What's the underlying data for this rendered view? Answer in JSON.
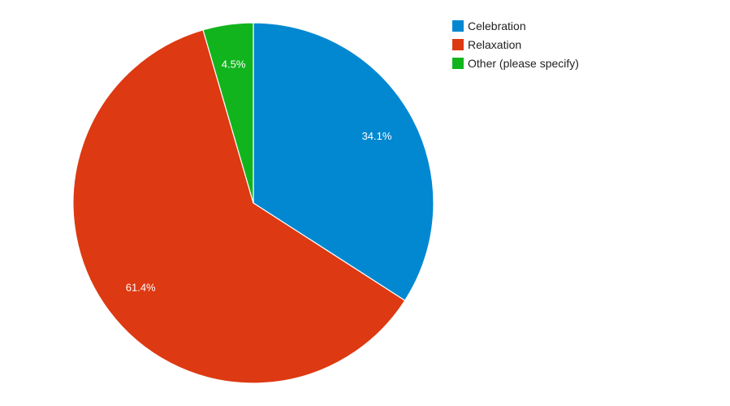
{
  "chart_data": {
    "type": "pie",
    "title": "",
    "start_angle_deg": 0,
    "direction": "clockwise",
    "legend_position": "top-right",
    "slices": [
      {
        "label": "Celebration",
        "value": 34.1,
        "display": "34.1%",
        "color": "#0288d1"
      },
      {
        "label": "Relaxation",
        "value": 61.4,
        "display": "61.4%",
        "color": "#dd3912"
      },
      {
        "label": "Other (please specify)",
        "value": 4.5,
        "display": "4.5%",
        "color": "#12b41e"
      }
    ]
  }
}
